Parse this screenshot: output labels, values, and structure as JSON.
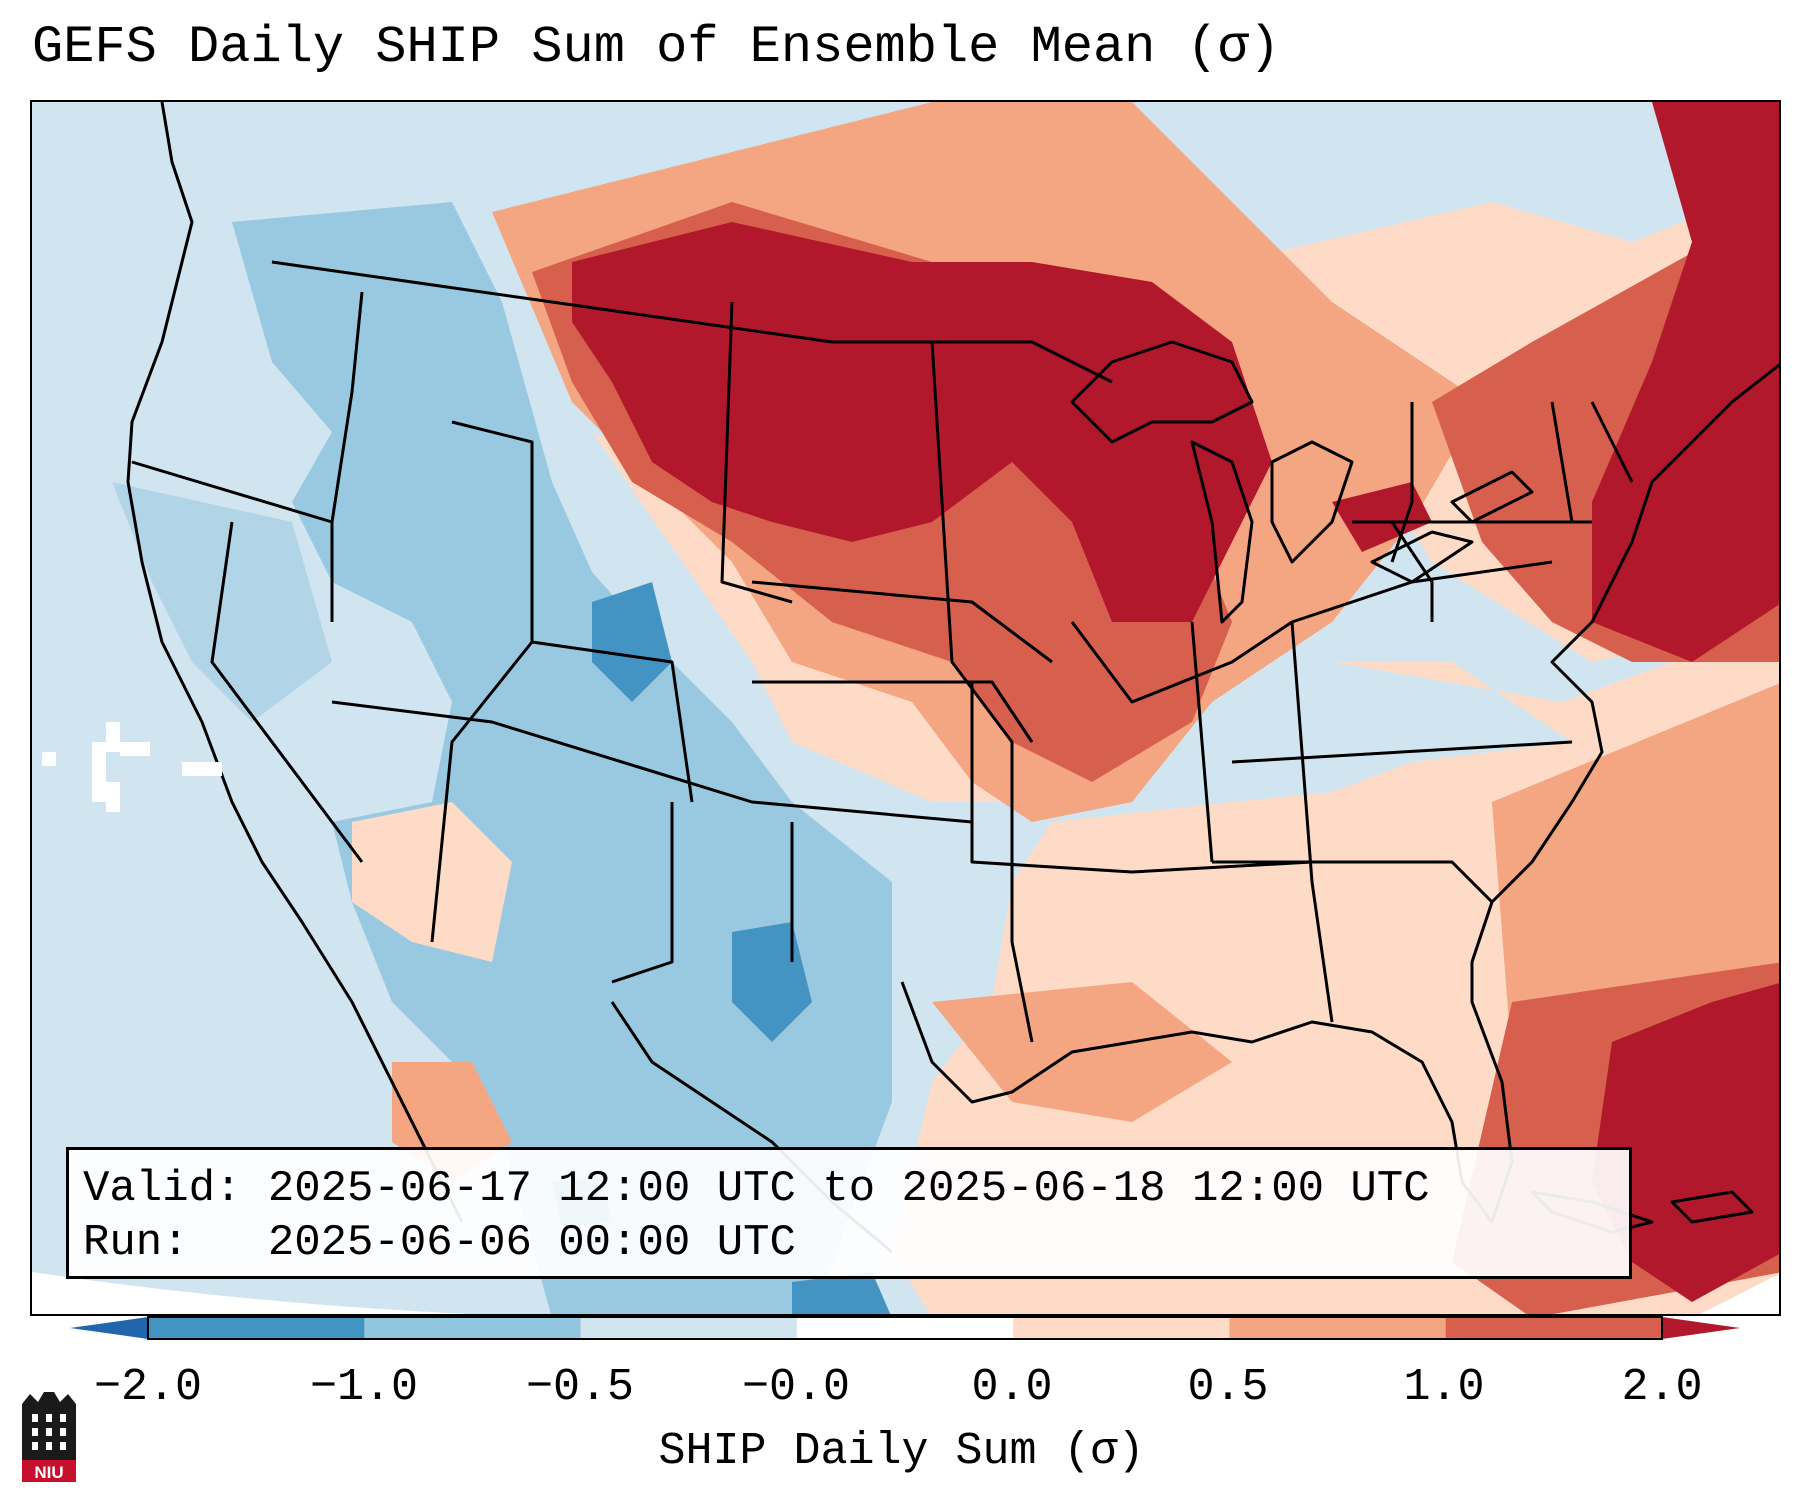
{
  "title": "GEFS Daily SHIP Sum of Ensemble Mean (σ)",
  "info": {
    "valid": "Valid: 2025-06-17 12:00 UTC to 2025-06-18 12:00 UTC",
    "run": "Run:   2025-06-06 00:00 UTC"
  },
  "colorbar": {
    "label": "SHIP Daily Sum (σ)",
    "ticks": [
      "−2.0",
      "−1.0",
      "−0.5",
      "−0.0",
      "0.0",
      "0.5",
      "1.0",
      "2.0"
    ],
    "colors": [
      "#2166ac",
      "#4393c3",
      "#92c5de",
      "#d1e5f0",
      "#ffffff",
      "#fddbc7",
      "#f4a582",
      "#d6604d",
      "#b2182b"
    ]
  },
  "logo": {
    "text": "NIU"
  }
}
